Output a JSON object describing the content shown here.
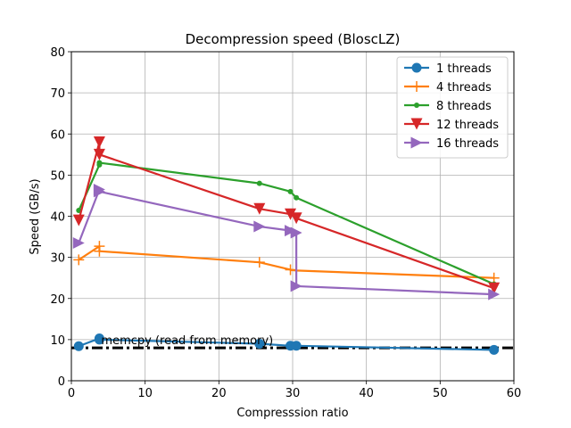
{
  "chart_data": {
    "type": "line",
    "title": "Decompression speed (BloscLZ)",
    "xlabel": "Compresssion ratio",
    "ylabel": "Speed (GB/s)",
    "xlim": [
      0,
      60
    ],
    "ylim": [
      0,
      80
    ],
    "xticks": [
      0,
      10,
      20,
      30,
      40,
      50,
      60
    ],
    "yticks": [
      0,
      10,
      20,
      30,
      40,
      50,
      60,
      70,
      80
    ],
    "grid": true,
    "legend_position": "top-right",
    "series": [
      {
        "name": "1 threads",
        "color": "#1f77b4",
        "marker": "circle",
        "x": [
          1.0,
          3.8,
          3.8,
          25.5,
          29.7,
          30.5,
          57.3
        ],
        "y": [
          8.4,
          10.3,
          10.0,
          9.0,
          8.5,
          8.5,
          7.5
        ]
      },
      {
        "name": "4 threads",
        "color": "#ff7f0e",
        "marker": "plus",
        "x": [
          1.0,
          3.8,
          3.8,
          25.5,
          29.7,
          30.5,
          57.3
        ],
        "y": [
          29.4,
          32.7,
          31.5,
          28.8,
          27.0,
          26.8,
          25.0
        ]
      },
      {
        "name": "8 threads",
        "color": "#2ca02c",
        "marker": "point",
        "x": [
          1.0,
          3.8,
          3.8,
          25.5,
          29.7,
          30.5,
          57.3
        ],
        "y": [
          41.4,
          52.5,
          53.0,
          48.0,
          46.0,
          44.5,
          23.5
        ]
      },
      {
        "name": "12 threads",
        "color": "#d62728",
        "marker": "triangle-down",
        "x": [
          1.0,
          3.8,
          3.8,
          25.5,
          29.7,
          30.5,
          57.3
        ],
        "y": [
          39.0,
          58.0,
          55.0,
          41.8,
          40.5,
          39.5,
          22.5
        ]
      },
      {
        "name": "16 threads",
        "color": "#9467bd",
        "marker": "triangle-right",
        "x": [
          1.0,
          3.8,
          3.8,
          25.5,
          29.7,
          30.5,
          30.5,
          57.3
        ],
        "y": [
          33.5,
          46.5,
          46.0,
          37.5,
          36.5,
          36.0,
          23.0,
          21.0
        ]
      }
    ],
    "reference_line": {
      "y": 8.0,
      "color": "#000000",
      "style": "dash-dot"
    },
    "annotation": {
      "text": "memcpy (read from memory)",
      "x": 3.8,
      "y": 8.5
    }
  }
}
